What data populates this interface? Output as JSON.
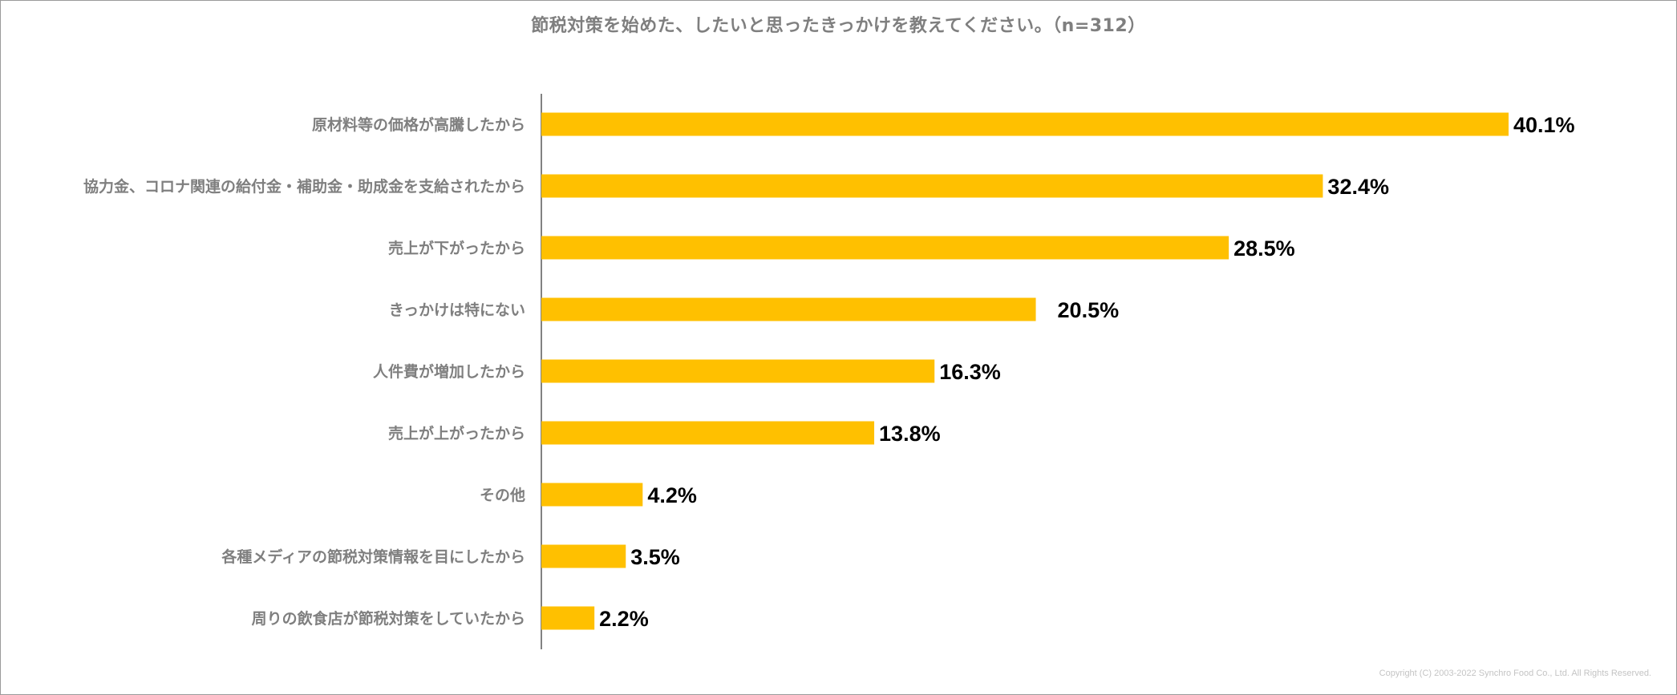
{
  "chart_data": {
    "type": "bar",
    "orientation": "horizontal",
    "title": "節税対策を始めた、したいと思ったきっかけを教えてください。（n=312）",
    "categories": [
      "原材料等の価格が高騰したから",
      "協力金、コロナ関連の給付金・補助金・助成金を支給されたから",
      "売上が下がったから",
      "きっかけは特にない",
      "人件費が増加したから",
      "売上が上がったから",
      "その他",
      "各種メディアの節税対策情報を目にしたから",
      "周りの飲食店が節税対策をしていたから"
    ],
    "values": [
      40.1,
      32.4,
      28.5,
      20.5,
      16.3,
      13.8,
      4.2,
      3.5,
      2.2
    ],
    "value_labels": [
      "40.1%",
      "32.4%",
      "28.5%",
      "20.5%",
      "16.3%",
      "13.8%",
      "4.2%",
      "3.5%",
      "2.2%"
    ],
    "unit": "%",
    "xlim": [
      0,
      40.1
    ],
    "grid": false,
    "legend": "none",
    "bar_color": "#FFC000",
    "label_color": "#7f7f7f",
    "value_color": "#000000"
  },
  "footer": {
    "copyright": "Copyright (C) 2003-2022 Synchro Food Co., Ltd. All Rights Reserved."
  }
}
